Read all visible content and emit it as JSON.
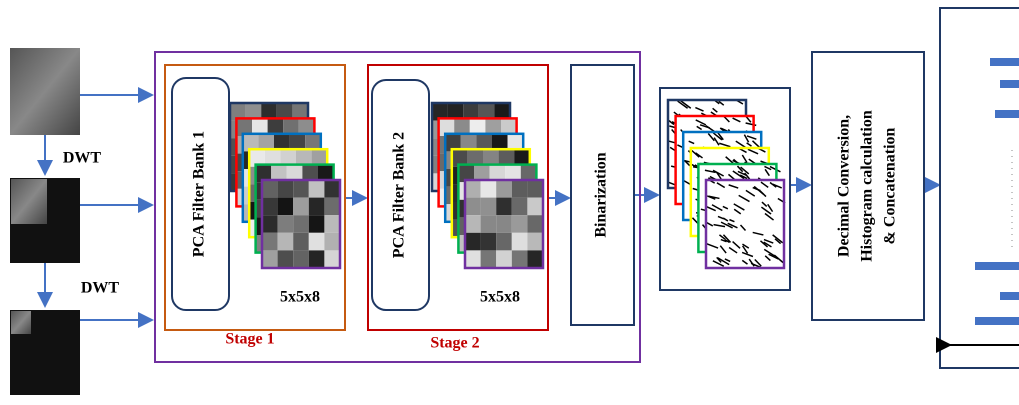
{
  "inputs": {
    "dwt_labels": [
      "DWT",
      "DWT"
    ]
  },
  "stage1": {
    "filter_bank": "PCA Filter Bank 1",
    "size": "5x5x8",
    "label": "Stage 1"
  },
  "stage2": {
    "filter_bank": "PCA Filter Bank 2",
    "size": "5x5x8",
    "label": "Stage 2"
  },
  "binarization": "Binarization",
  "encoding": {
    "lines": [
      "Decimal Conversion,",
      "Histogram calculation",
      "& Concatenation"
    ]
  }
}
